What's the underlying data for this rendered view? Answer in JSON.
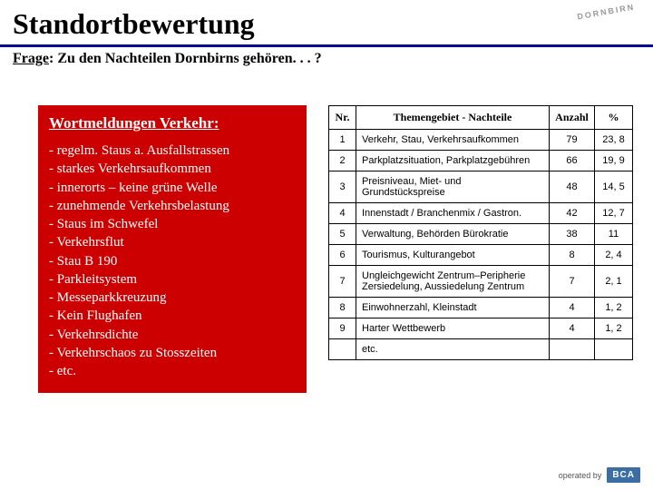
{
  "title": "Standortbewertung",
  "question_prefix": "Frage",
  "question_text": ": Zu den Nachteilen Dornbirns gehören. . . ?",
  "logo_text": "DORNBIRN",
  "redbox": {
    "heading_prefix": "Wortmeldungen Verkehr",
    "heading_suffix": ":",
    "items": [
      "- regelm. Staus a. Ausfallstrassen",
      "- starkes Verkehrsaufkommen",
      "- innerorts – keine grüne Welle",
      "- zunehmende Verkehrsbelastung",
      "- Staus im Schwefel",
      "- Verkehrsflut",
      "- Stau B 190",
      "- Parkleitsystem",
      "- Messeparkkreuzung",
      "- Kein Flughafen",
      "- Verkehrsdichte",
      "- Verkehrschaos zu Stosszeiten",
      "- etc."
    ]
  },
  "table": {
    "headers": {
      "nr": "Nr.",
      "theme": "Themengebiet - Nachteile",
      "count": "Anzahl",
      "pct": "%"
    },
    "rows": [
      {
        "nr": "1",
        "theme": "Verkehr, Stau, Verkehrsaufkommen",
        "count": "79",
        "pct": "23, 8"
      },
      {
        "nr": "2",
        "theme": "Parkplatzsituation, Parkplatzgebühren",
        "count": "66",
        "pct": "19, 9"
      },
      {
        "nr": "3",
        "theme": "Preisniveau, Miet- und Grundstückspreise",
        "count": "48",
        "pct": "14, 5"
      },
      {
        "nr": "4",
        "theme": "Innenstadt / Branchenmix / Gastron.",
        "count": "42",
        "pct": "12, 7"
      },
      {
        "nr": "5",
        "theme": "Verwaltung, Behörden Bürokratie",
        "count": "38",
        "pct": "11"
      },
      {
        "nr": "6",
        "theme": "Tourismus, Kulturangebot",
        "count": "8",
        "pct": "2, 4"
      },
      {
        "nr": "7",
        "theme": "Ungleichgewicht Zentrum–Peripherie Zersiedelung, Aussiedelung Zentrum",
        "count": "7",
        "pct": "2, 1"
      },
      {
        "nr": "8",
        "theme": "Einwohnerzahl, Kleinstadt",
        "count": "4",
        "pct": "1, 2"
      },
      {
        "nr": "9",
        "theme": "Harter Wettbewerb",
        "count": "4",
        "pct": "1, 2"
      }
    ],
    "etc": "etc."
  },
  "footer": {
    "operated": "operated by",
    "brand": "BCA"
  },
  "colors": {
    "redbox_bg": "#cc0000",
    "underline": "#000099",
    "bca_bg": "#3b6ea5"
  }
}
